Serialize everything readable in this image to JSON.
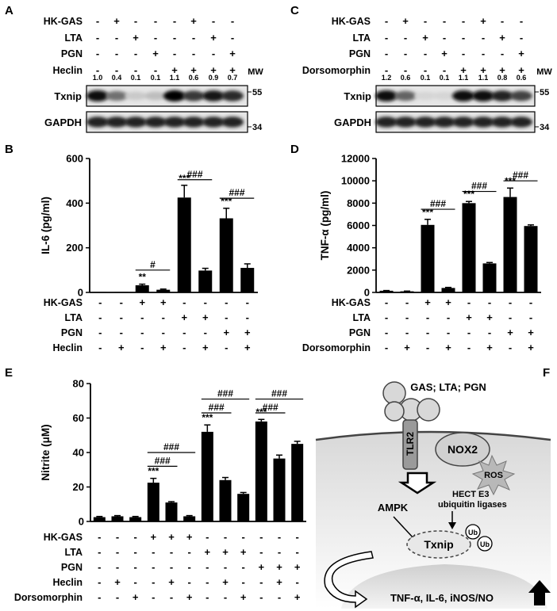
{
  "panel_A": {
    "letter": "A",
    "rows": [
      {
        "label": "HK-GAS",
        "signs": [
          "-",
          "+",
          "-",
          "-",
          "-",
          "+",
          "-",
          "-"
        ]
      },
      {
        "label": "LTA",
        "signs": [
          "-",
          "-",
          "+",
          "-",
          "-",
          "-",
          "+",
          "-"
        ]
      },
      {
        "label": "PGN",
        "signs": [
          "-",
          "-",
          "-",
          "+",
          "-",
          "-",
          "-",
          "+"
        ]
      },
      {
        "label": "Heclin",
        "signs": [
          "-",
          "-",
          "-",
          "-",
          "+",
          "+",
          "+",
          "+"
        ]
      }
    ],
    "mw_label": "MW",
    "ratios": [
      "1.0",
      "0.4",
      "0.1",
      "0.1",
      "1.1",
      "0.6",
      "0.9",
      "0.7"
    ],
    "blots": [
      {
        "label": "Txnip",
        "mw": "55",
        "intensity": [
          1.0,
          0.55,
          0.15,
          0.2,
          1.05,
          0.8,
          0.95,
          0.85
        ]
      },
      {
        "label": "GAPDH",
        "mw": "34",
        "intensity": [
          0.9,
          0.9,
          0.9,
          0.9,
          0.9,
          0.9,
          0.9,
          0.9
        ]
      }
    ]
  },
  "panel_C": {
    "letter": "C",
    "rows": [
      {
        "label": "HK-GAS",
        "signs": [
          "-",
          "+",
          "-",
          "-",
          "-",
          "+",
          "-",
          "-"
        ]
      },
      {
        "label": "LTA",
        "signs": [
          "-",
          "-",
          "+",
          "-",
          "-",
          "-",
          "+",
          "-"
        ]
      },
      {
        "label": "PGN",
        "signs": [
          "-",
          "-",
          "-",
          "+",
          "-",
          "-",
          "-",
          "+"
        ]
      },
      {
        "label": "Dorsomorphin",
        "signs": [
          "-",
          "-",
          "-",
          "-",
          "+",
          "+",
          "+",
          "+"
        ]
      }
    ],
    "mw_label": "MW",
    "ratios": [
      "1.2",
      "0.6",
      "0.1",
      "0.1",
      "1.1",
      "1.1",
      "0.8",
      "0.6"
    ],
    "blots": [
      {
        "label": "Txnip",
        "mw": "55",
        "intensity": [
          1.0,
          0.6,
          0.1,
          0.1,
          1.0,
          1.0,
          0.9,
          0.75
        ]
      },
      {
        "label": "GAPDH",
        "mw": "34",
        "intensity": [
          0.9,
          0.9,
          0.9,
          0.9,
          0.9,
          0.9,
          0.9,
          0.9
        ]
      }
    ]
  },
  "chart_data": [
    {
      "panel": "B",
      "type": "bar",
      "ylabel": "IL-6 (pg/ml)",
      "ylim": [
        0,
        600
      ],
      "yticks": [
        0,
        200,
        400,
        600
      ],
      "values": [
        2,
        2,
        32,
        12,
        425,
        98,
        332,
        110
      ],
      "errors": [
        0,
        0,
        5,
        3,
        55,
        10,
        45,
        18
      ],
      "stars": [
        "",
        "",
        "**",
        "",
        "***",
        "",
        "***",
        ""
      ],
      "rows": [
        {
          "label": "HK-GAS",
          "signs": [
            "-",
            "-",
            "+",
            "+",
            "-",
            "-",
            "-",
            "-"
          ]
        },
        {
          "label": "LTA",
          "signs": [
            "-",
            "-",
            "-",
            "-",
            "+",
            "+",
            "-",
            "-"
          ]
        },
        {
          "label": "PGN",
          "signs": [
            "-",
            "-",
            "-",
            "-",
            "-",
            "-",
            "+",
            "+"
          ]
        },
        {
          "label": "Heclin",
          "signs": [
            "-",
            "+",
            "-",
            "+",
            "-",
            "+",
            "-",
            "+"
          ]
        }
      ],
      "comparisons": [
        {
          "from": 2,
          "to": 3,
          "label": "#",
          "y": 100
        },
        {
          "from": 4,
          "to": 5,
          "label": "###",
          "y": 505
        },
        {
          "from": 6,
          "to": 7,
          "label": "###",
          "y": 422
        }
      ]
    },
    {
      "panel": "D",
      "type": "bar",
      "ylabel": "TNF-α (pg/ml)",
      "ylim": [
        0,
        12000
      ],
      "yticks": [
        0,
        2000,
        4000,
        6000,
        8000,
        10000,
        12000
      ],
      "values": [
        150,
        100,
        6050,
        400,
        8000,
        2600,
        8550,
        5950
      ],
      "errors": [
        20,
        20,
        500,
        50,
        150,
        80,
        800,
        100
      ],
      "stars": [
        "",
        "",
        "***",
        "",
        "***",
        "",
        "***",
        ""
      ],
      "rows": [
        {
          "label": "HK-GAS",
          "signs": [
            "-",
            "-",
            "+",
            "+",
            "-",
            "-",
            "-",
            "-"
          ]
        },
        {
          "label": "LTA",
          "signs": [
            "-",
            "-",
            "-",
            "-",
            "+",
            "+",
            "-",
            "-"
          ]
        },
        {
          "label": "PGN",
          "signs": [
            "-",
            "-",
            "-",
            "-",
            "-",
            "-",
            "+",
            "+"
          ]
        },
        {
          "label": "Dorsomorphin",
          "signs": [
            "-",
            "+",
            "-",
            "+",
            "-",
            "+",
            "-",
            "+"
          ]
        }
      ],
      "comparisons": [
        {
          "from": 2,
          "to": 3,
          "label": "###",
          "y": 7450
        },
        {
          "from": 4,
          "to": 5,
          "label": "###",
          "y": 9050
        },
        {
          "from": 6,
          "to": 7,
          "label": "###",
          "y": 10000
        }
      ]
    },
    {
      "panel": "E",
      "type": "bar",
      "ylabel": "Nitrite (μM)",
      "ylim": [
        0,
        80
      ],
      "yticks": [
        0,
        20,
        40,
        60,
        80
      ],
      "values": [
        2.5,
        3,
        2.5,
        22.5,
        11,
        3,
        52,
        24,
        16,
        58,
        36.5,
        45
      ],
      "errors": [
        0.4,
        0.4,
        0.4,
        2.5,
        0.5,
        0.4,
        4,
        1.5,
        0.8,
        1.2,
        2,
        1.5
      ],
      "stars": [
        "",
        "",
        "",
        "***",
        "",
        "",
        "***",
        "",
        "",
        "***",
        "",
        ""
      ],
      "rows": [
        {
          "label": "HK-GAS",
          "signs": [
            "-",
            "-",
            "-",
            "+",
            "+",
            "+",
            "-",
            "-",
            "-",
            "-",
            "-",
            "-"
          ]
        },
        {
          "label": "LTA",
          "signs": [
            "-",
            "-",
            "-",
            "-",
            "-",
            "-",
            "+",
            "+",
            "+",
            "-",
            "-",
            "-"
          ]
        },
        {
          "label": "PGN",
          "signs": [
            "-",
            "-",
            "-",
            "-",
            "-",
            "-",
            "-",
            "-",
            "-",
            "+",
            "+",
            "+"
          ]
        },
        {
          "label": "Heclin",
          "signs": [
            "-",
            "+",
            "-",
            "-",
            "+",
            "-",
            "-",
            "+",
            "-",
            "-",
            "+",
            "-"
          ]
        },
        {
          "label": "Dorsomorphin",
          "signs": [
            "-",
            "-",
            "+",
            "-",
            "-",
            "+",
            "-",
            "-",
            "+",
            "-",
            "-",
            "+"
          ]
        }
      ],
      "comparisons": [
        {
          "from": 3,
          "to": 4,
          "label": "###",
          "y": 32
        },
        {
          "from": 3,
          "to": 5,
          "label": "###",
          "y": 40
        },
        {
          "from": 6,
          "to": 7,
          "label": "###",
          "y": 63
        },
        {
          "from": 6,
          "to": 8,
          "label": "###",
          "y": 71
        },
        {
          "from": 9,
          "to": 10,
          "label": "###",
          "y": 63
        },
        {
          "from": 9,
          "to": 11,
          "label": "###",
          "y": 71
        }
      ]
    }
  ],
  "panel_B": {
    "letter": "B"
  },
  "panel_D": {
    "letter": "D"
  },
  "panel_E": {
    "letter": "E"
  },
  "panel_F": {
    "letter": "F",
    "ligands": "GAS; LTA; PGN",
    "receptor": "TLR2",
    "nox": "NOX2",
    "ros": "ROS",
    "ampk": "AMPK",
    "hect_line1": "HECT E3",
    "hect_line2": "ubiquitin ligases",
    "txnip": "Txnip",
    "ub": "Ub",
    "outputs": "TNF-α, IL-6, iNOS/NO"
  }
}
